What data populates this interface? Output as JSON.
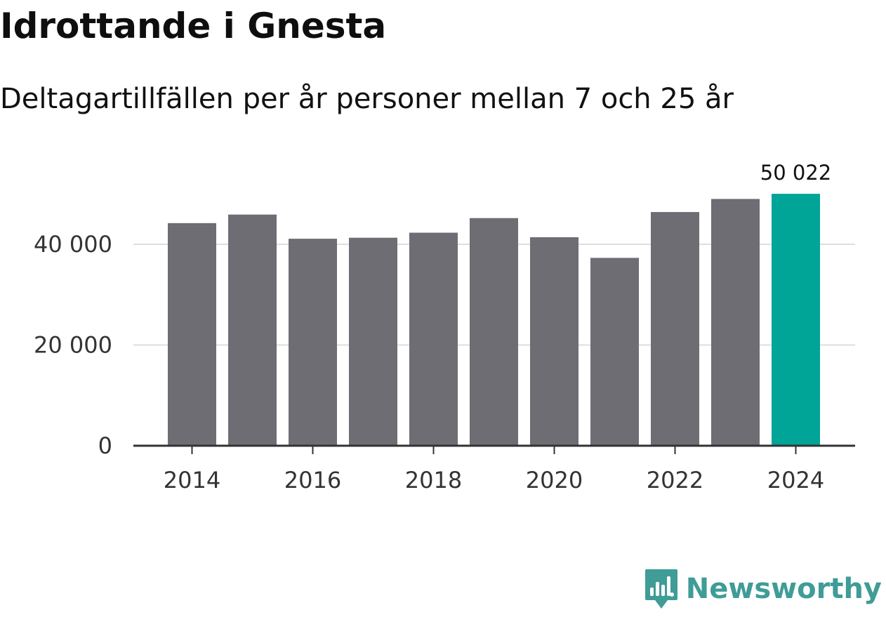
{
  "chart_data": {
    "type": "bar",
    "title": "Idrottande i Gnesta",
    "subtitle": "Deltagartillfällen per år personer mellan 7 och 25 år",
    "categories": [
      2014,
      2015,
      2016,
      2017,
      2018,
      2019,
      2020,
      2021,
      2022,
      2023,
      2024
    ],
    "x_tick_labels": [
      "2014",
      "2016",
      "2018",
      "2020",
      "2022",
      "2024"
    ],
    "values": [
      44200,
      45900,
      41100,
      41300,
      42300,
      45200,
      41400,
      37300,
      46400,
      49000,
      50022
    ],
    "y_ticks": [
      0,
      20000,
      40000
    ],
    "y_tick_labels": [
      "0",
      "20 000",
      "40 000"
    ],
    "ylim": [
      0,
      52500
    ],
    "grid": true,
    "highlight": {
      "category": 2024,
      "label": "50 022"
    },
    "colors": {
      "bar": "#6e6d74",
      "highlight": "#00a598",
      "grid": "#dedede",
      "axis": "#333333"
    }
  },
  "brand": {
    "name": "Newsworthy",
    "icon": "newsworthy-logo-icon",
    "color": "#3f9c97"
  }
}
